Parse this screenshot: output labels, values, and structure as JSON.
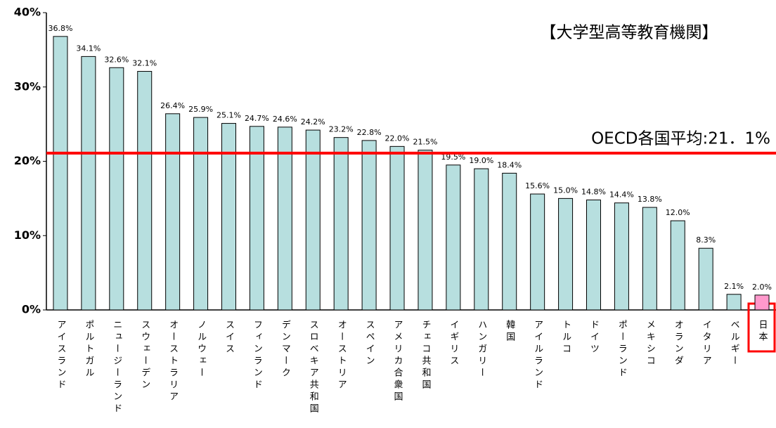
{
  "chart_data": {
    "type": "bar",
    "title": "【大学型高等教育機関】",
    "categories": [
      "アイスランド",
      "ポルトガル",
      "ニュージーランド",
      "スウェーデン",
      "オーストラリア",
      "ノルウェー",
      "スイス",
      "フィンランド",
      "デンマーク",
      "スロベキア共和国",
      "オーストリア",
      "スペイン",
      "アメリカ合衆国",
      "チェコ共和国",
      "イギリス",
      "ハンガリー",
      "韓国",
      "アイルランド",
      "トルコ",
      "ドイツ",
      "ポーランド",
      "メキシコ",
      "オランダ",
      "イタリア",
      "ベルギー",
      "日本"
    ],
    "values": [
      36.8,
      34.1,
      32.6,
      32.1,
      26.4,
      25.9,
      25.1,
      24.7,
      24.6,
      24.2,
      23.2,
      22.8,
      22.0,
      21.5,
      19.5,
      19.0,
      18.4,
      15.6,
      15.0,
      14.8,
      14.4,
      13.8,
      12.0,
      8.3,
      2.1,
      2.0
    ],
    "value_labels": [
      "36.8%",
      "34.1%",
      "32.6%",
      "32.1%",
      "26.4%",
      "25.9%",
      "25.1%",
      "24.7%",
      "24.6%",
      "24.2%",
      "23.2%",
      "22.8%",
      "22.0%",
      "21.5%",
      "19.5%",
      "19.0%",
      "18.4%",
      "15.6%",
      "15.0%",
      "14.8%",
      "14.4%",
      "13.8%",
      "12.0%",
      "8.3%",
      "2.1%",
      "2.0%"
    ],
    "colors": [
      "#b7dfdf",
      "#b7dfdf",
      "#b7dfdf",
      "#b7dfdf",
      "#b7dfdf",
      "#b7dfdf",
      "#b7dfdf",
      "#b7dfdf",
      "#b7dfdf",
      "#b7dfdf",
      "#b7dfdf",
      "#b7dfdf",
      "#b7dfdf",
      "#b7dfdf",
      "#b7dfdf",
      "#b7dfdf",
      "#b7dfdf",
      "#b7dfdf",
      "#b7dfdf",
      "#b7dfdf",
      "#b7dfdf",
      "#b7dfdf",
      "#b7dfdf",
      "#b7dfdf",
      "#b7dfdf",
      "#ff99cc"
    ],
    "ylim": [
      0,
      40
    ],
    "yticks": [
      {
        "value": 0,
        "label": "0%"
      },
      {
        "value": 10,
        "label": "10%"
      },
      {
        "value": 20,
        "label": "20%"
      },
      {
        "value": 30,
        "label": "30%"
      },
      {
        "value": 40,
        "label": "40%"
      }
    ],
    "reference_line": {
      "value": 21.1,
      "label": "OECD各国平均:21．1%",
      "color": "#ff0000"
    }
  }
}
